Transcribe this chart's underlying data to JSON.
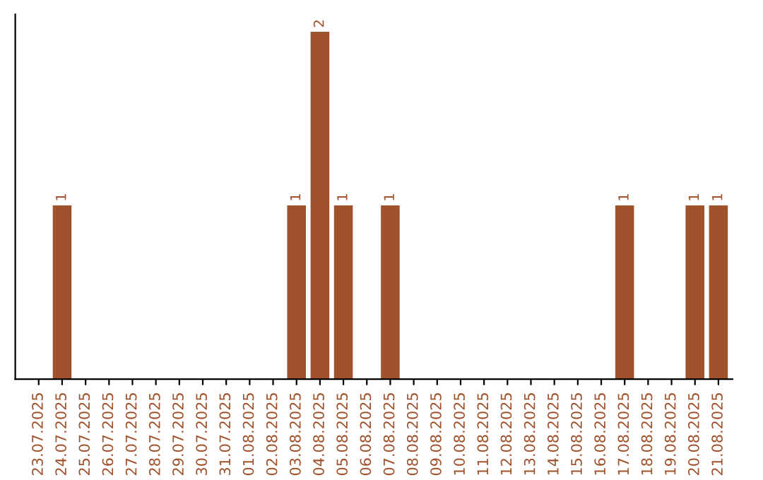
{
  "chart_data": {
    "type": "bar",
    "categories": [
      "23.07.2025",
      "24.07.2025",
      "25.07.2025",
      "26.07.2025",
      "27.07.2025",
      "28.07.2025",
      "29.07.2025",
      "30.07.2025",
      "31.07.2025",
      "01.08.2025",
      "02.08.2025",
      "03.08.2025",
      "04.08.2025",
      "05.08.2025",
      "06.08.2025",
      "07.08.2025",
      "08.08.2025",
      "09.08.2025",
      "10.08.2025",
      "11.08.2025",
      "12.08.2025",
      "13.08.2025",
      "14.08.2025",
      "15.08.2025",
      "16.08.2025",
      "17.08.2025",
      "18.08.2025",
      "19.08.2025",
      "20.08.2025",
      "21.08.2025"
    ],
    "values": [
      0,
      1,
      0,
      0,
      0,
      0,
      0,
      0,
      0,
      0,
      0,
      1,
      2,
      1,
      0,
      1,
      0,
      0,
      0,
      0,
      0,
      0,
      0,
      0,
      0,
      1,
      0,
      0,
      1,
      1
    ],
    "color": "#a0522d",
    "value_labels": [
      null,
      "1",
      null,
      null,
      null,
      null,
      null,
      null,
      null,
      null,
      null,
      "1",
      "2",
      "1",
      null,
      "1",
      null,
      null,
      null,
      null,
      null,
      null,
      null,
      null,
      null,
      "1",
      null,
      null,
      "1",
      "1"
    ],
    "tick_labels": "x",
    "grid": false,
    "legend": false
  }
}
